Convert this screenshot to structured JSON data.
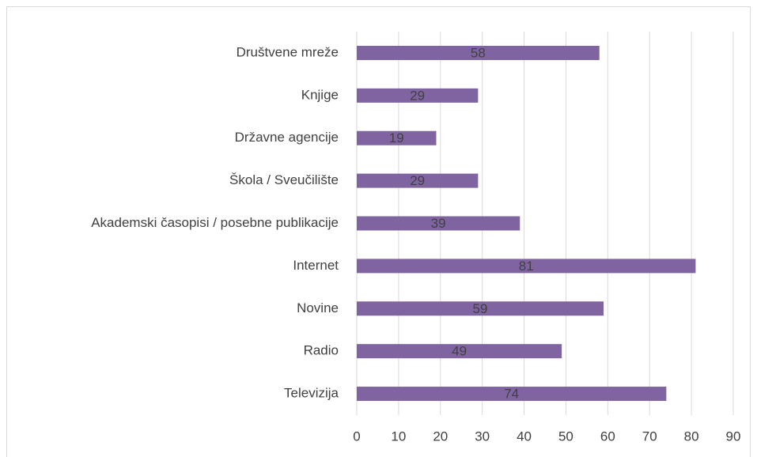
{
  "chart_data": {
    "type": "barh",
    "categories": [
      "Društvene mreže",
      "Knjige",
      "Državne agencije",
      "Škola / Sveučilište",
      "Akademski časopisi / posebne publikacije",
      "Internet",
      "Novine",
      "Radio",
      "Televizija"
    ],
    "values": [
      58,
      29,
      19,
      29,
      39,
      81,
      59,
      49,
      74
    ],
    "color": "#8064a2",
    "xlim": [
      0,
      90
    ],
    "xticks": [
      0,
      10,
      20,
      30,
      40,
      50,
      60,
      70,
      80,
      90
    ],
    "grid": true
  }
}
